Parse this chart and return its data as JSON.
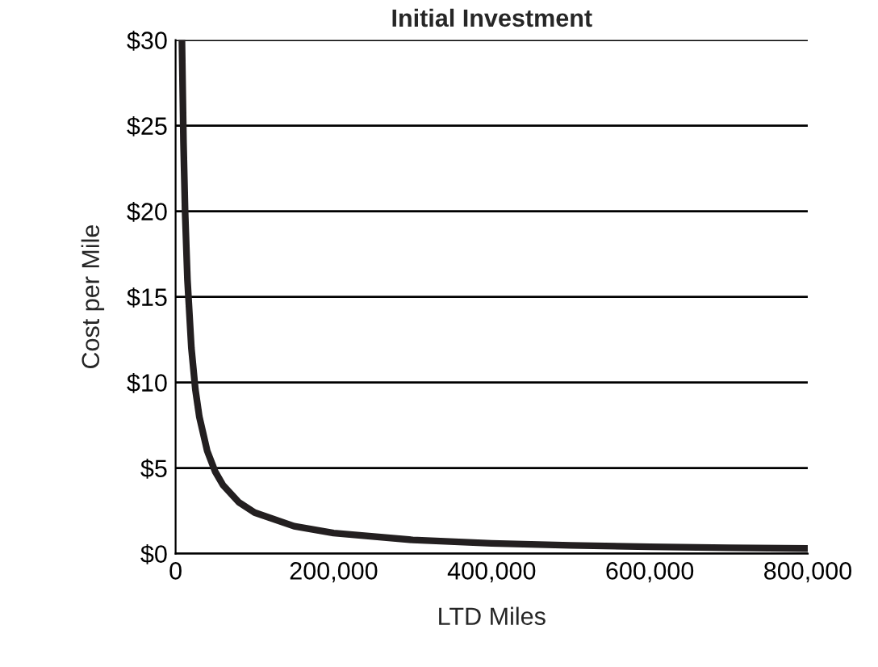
{
  "chart_data": {
    "type": "line",
    "title": "Initial Investment",
    "xlabel": "LTD Miles",
    "ylabel": "Cost per Mile",
    "x": [
      8000,
      10000,
      12000,
      15000,
      20000,
      25000,
      30000,
      40000,
      50000,
      60000,
      80000,
      100000,
      150000,
      200000,
      300000,
      400000,
      500000,
      600000,
      700000,
      800000
    ],
    "series": [
      {
        "color": "#231f20",
        "values": [
          30,
          24,
          20,
          16,
          12,
          9.6,
          8,
          6,
          4.8,
          4,
          3,
          2.4,
          1.6,
          1.2,
          0.8,
          0.6,
          0.48,
          0.4,
          0.34,
          0.3
        ]
      }
    ],
    "xlim": [
      0,
      800000
    ],
    "xticks": [
      {
        "value": 0,
        "label": "0"
      },
      {
        "value": 200000,
        "label": "200,000"
      },
      {
        "value": 400000,
        "label": "400,000"
      },
      {
        "value": 600000,
        "label": "600,000"
      },
      {
        "value": 800000,
        "label": "800,000"
      }
    ],
    "ylim": [
      0,
      30
    ],
    "yticks": [
      {
        "value": 0,
        "label": "$0"
      },
      {
        "value": 5,
        "label": "$5"
      },
      {
        "value": 10,
        "label": "$10"
      },
      {
        "value": 15,
        "label": "$15"
      },
      {
        "value": 20,
        "label": "$20"
      },
      {
        "value": 25,
        "label": "$25"
      },
      {
        "value": 30,
        "label": "$30"
      }
    ],
    "grid": "y",
    "legend": false,
    "marker": "none",
    "line_style": "solid"
  }
}
